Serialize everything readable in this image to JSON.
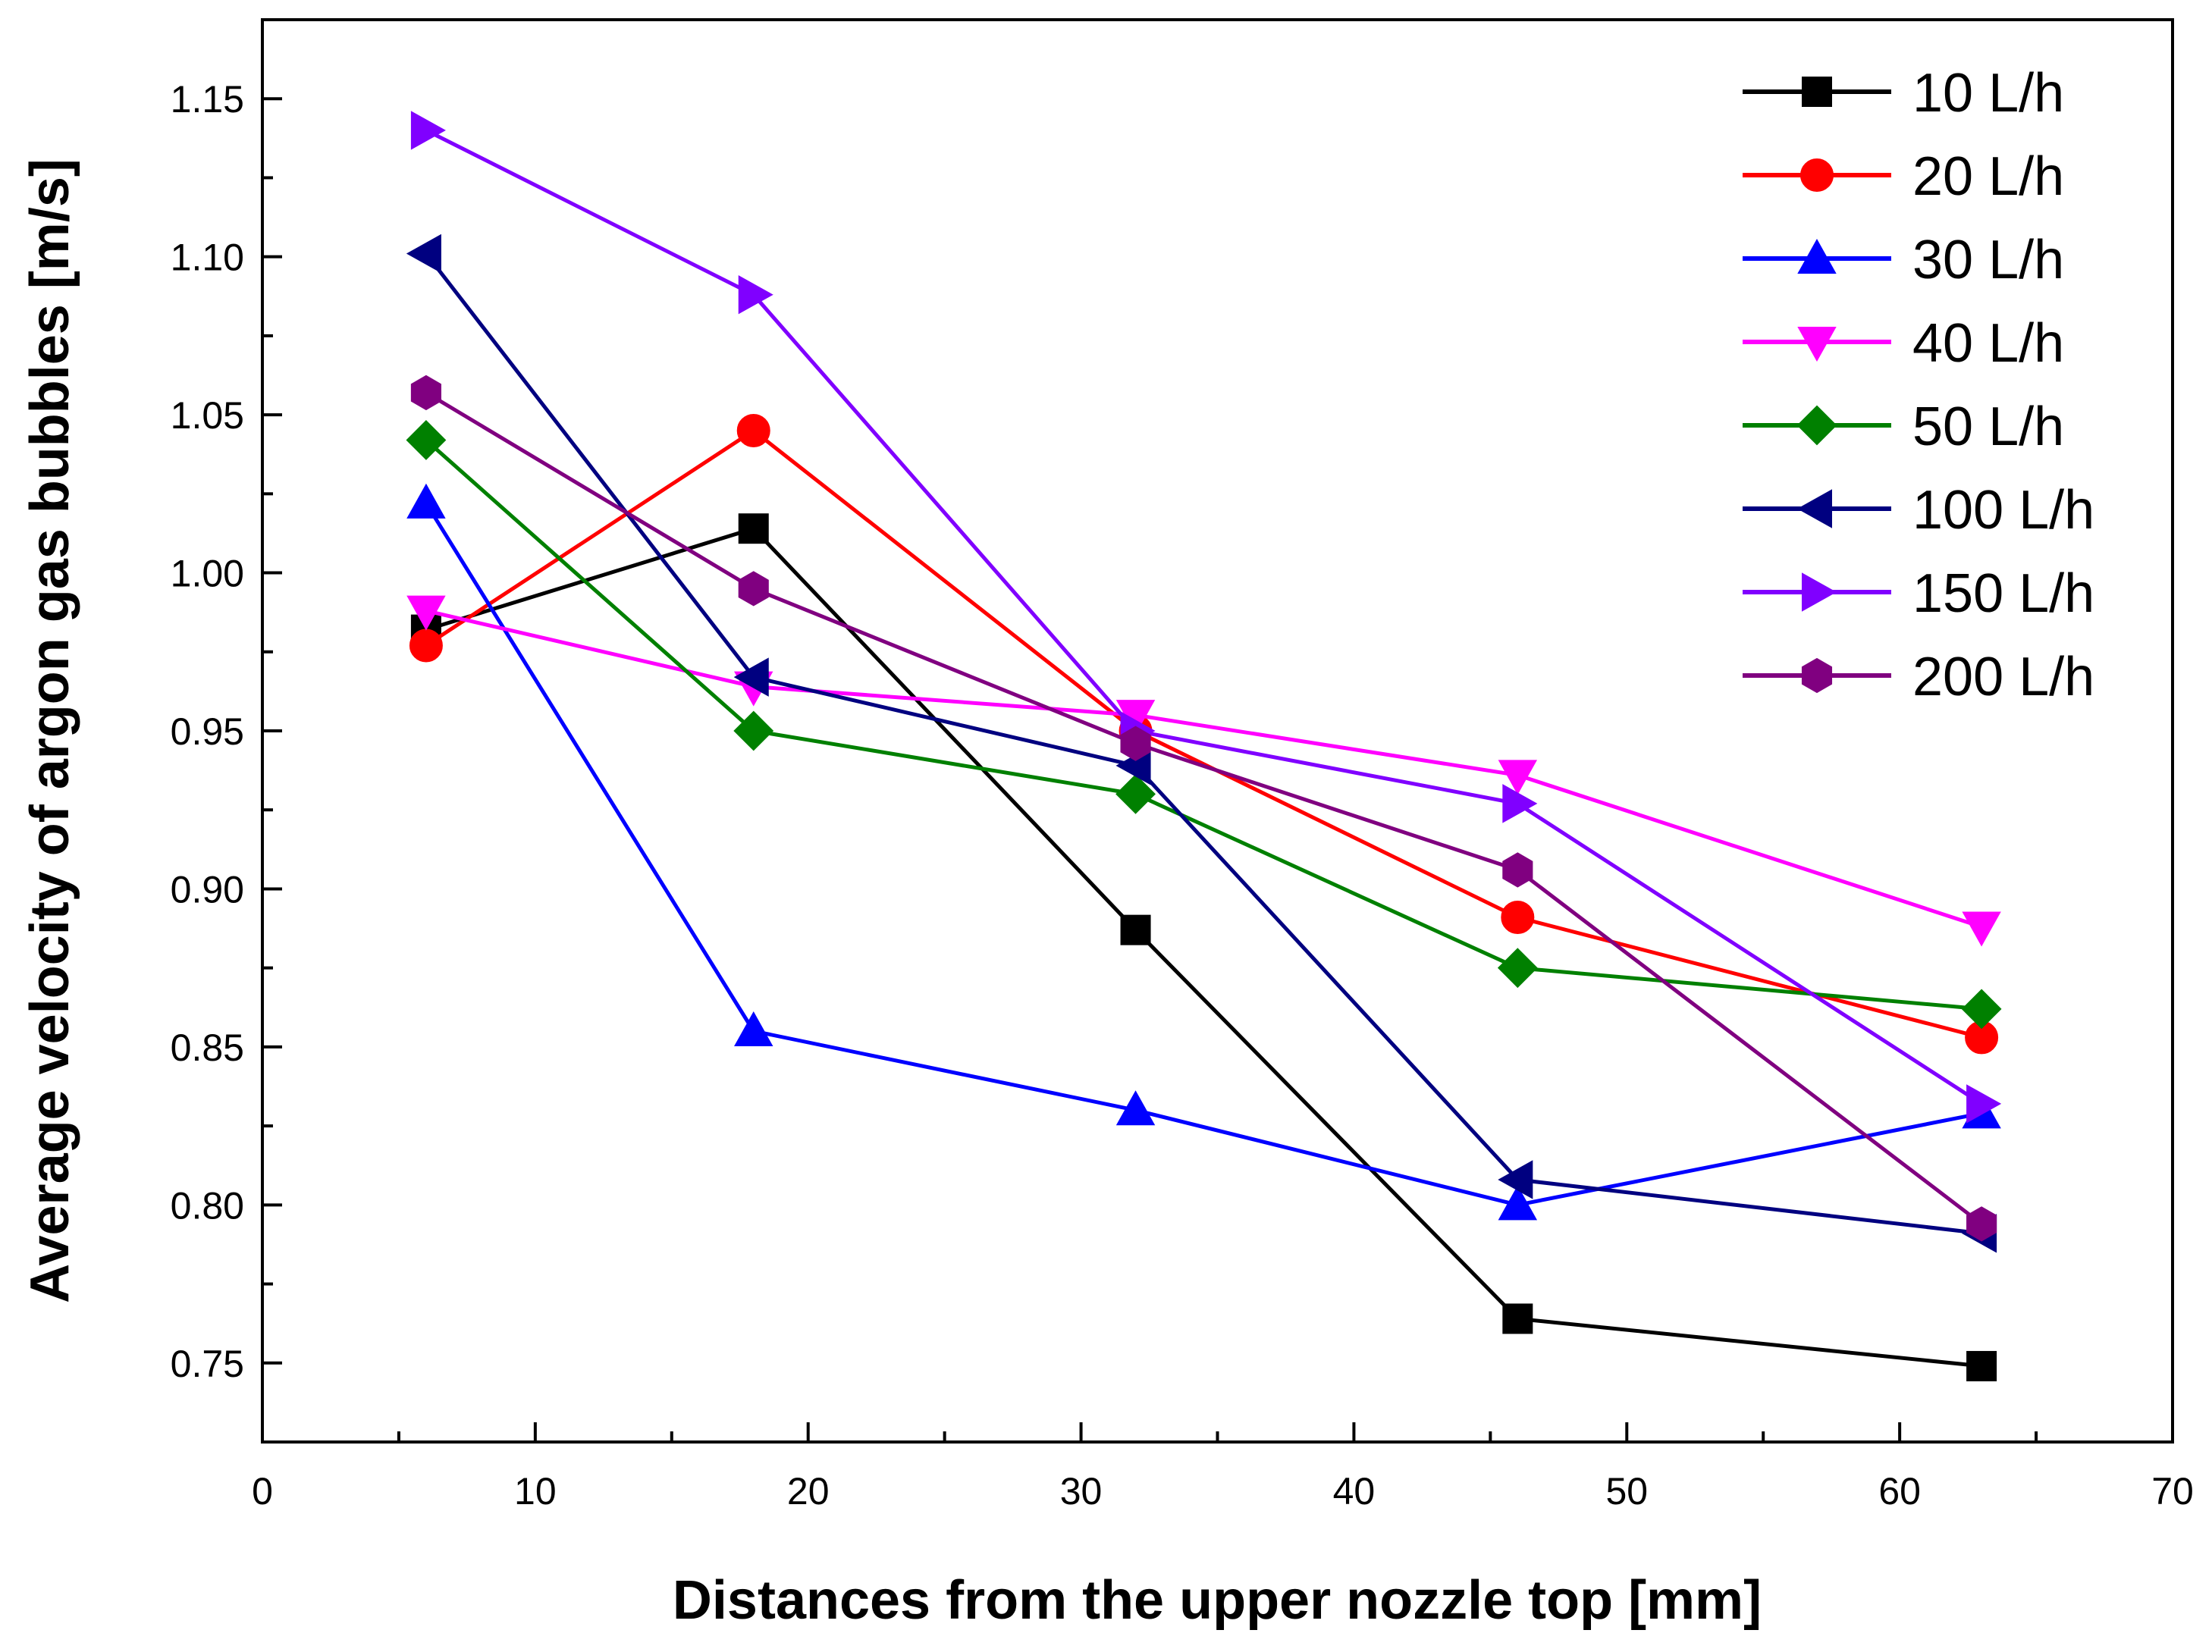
{
  "chart_data": {
    "type": "line",
    "title": "",
    "xlabel": "Distances from the upper nozzle top [mm]",
    "ylabel": "Average velocity of argon gas bubbles [m/s]",
    "xlim": [
      0,
      70
    ],
    "ylim": [
      0.725,
      1.175
    ],
    "xticks": [
      0,
      10,
      20,
      30,
      40,
      50,
      60,
      70
    ],
    "xtick_labels": [
      "0",
      "10",
      "20",
      "30",
      "40",
      "50",
      "60",
      "70"
    ],
    "yticks": [
      0.75,
      0.8,
      0.85,
      0.9,
      0.95,
      1.0,
      1.05,
      1.1,
      1.15
    ],
    "ytick_labels": [
      "0.75",
      "0.80",
      "0.85",
      "0.90",
      "0.95",
      "1.00",
      "1.05",
      "1.10",
      "1.15"
    ],
    "legend_position": "top-right",
    "grid": false,
    "x": [
      6,
      18,
      32,
      46,
      63
    ],
    "series": [
      {
        "name": "10 L/h",
        "color": "#000000",
        "marker": "square",
        "values": [
          0.982,
          1.014,
          0.887,
          0.764,
          0.749
        ]
      },
      {
        "name": "20 L/h",
        "color": "#ff0000",
        "marker": "circle",
        "values": [
          0.977,
          1.045,
          0.95,
          0.891,
          0.853
        ]
      },
      {
        "name": "30 L/h",
        "color": "#0000ff",
        "marker": "triangle-up",
        "values": [
          1.022,
          0.855,
          0.83,
          0.8,
          0.829
        ]
      },
      {
        "name": "40 L/h",
        "color": "#ff00ff",
        "marker": "triangle-down",
        "values": [
          0.988,
          0.964,
          0.955,
          0.936,
          0.888
        ]
      },
      {
        "name": "50 L/h",
        "color": "#008000",
        "marker": "diamond",
        "values": [
          1.042,
          0.95,
          0.93,
          0.875,
          0.862
        ]
      },
      {
        "name": "100 L/h",
        "color": "#000080",
        "marker": "triangle-left",
        "values": [
          1.101,
          0.967,
          0.939,
          0.808,
          0.791
        ]
      },
      {
        "name": "150 L/h",
        "color": "#8000ff",
        "marker": "triangle-right",
        "values": [
          1.14,
          1.088,
          0.95,
          0.927,
          0.832
        ]
      },
      {
        "name": "200 L/h",
        "color": "#800080",
        "marker": "hexagon",
        "values": [
          1.057,
          0.995,
          0.946,
          0.906,
          0.794
        ]
      }
    ]
  }
}
